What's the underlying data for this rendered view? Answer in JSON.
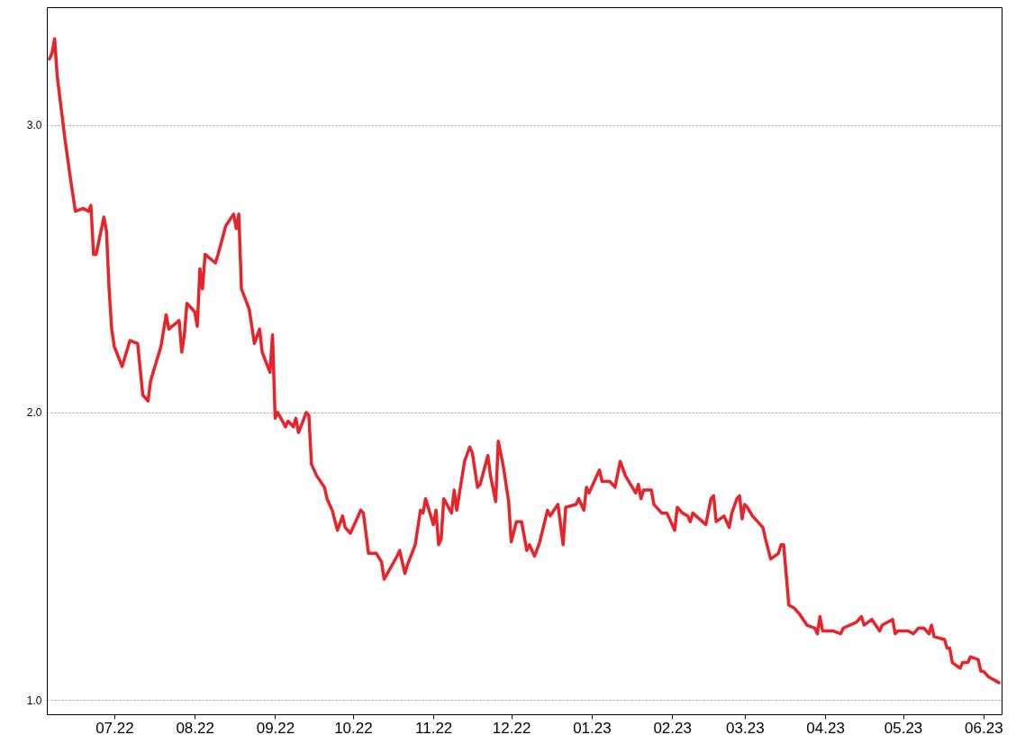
{
  "chart_data": {
    "type": "line",
    "grid": "y",
    "marker": "none",
    "line_style": "solid",
    "xlim": [
      "2022-06-05",
      "2023-06-08"
    ],
    "ylim": [
      0.95,
      3.41
    ],
    "xticks": [
      {
        "value": "2022-07-01",
        "label": "07.22"
      },
      {
        "value": "2022-08-01",
        "label": "08.22"
      },
      {
        "value": "2022-09-01",
        "label": "09.22"
      },
      {
        "value": "2022-10-01",
        "label": "10.22"
      },
      {
        "value": "2022-11-01",
        "label": "11.22"
      },
      {
        "value": "2022-12-01",
        "label": "12.22"
      },
      {
        "value": "2023-01-01",
        "label": "01.23"
      },
      {
        "value": "2023-02-01",
        "label": "02.23"
      },
      {
        "value": "2023-03-01",
        "label": "03.23"
      },
      {
        "value": "2023-04-01",
        "label": "04.23"
      },
      {
        "value": "2023-05-01",
        "label": "05.23"
      },
      {
        "value": "2023-06-01",
        "label": "06.23"
      }
    ],
    "yticks": [
      {
        "value": 1,
        "label": "1.0"
      },
      {
        "value": 2,
        "label": "2.0"
      },
      {
        "value": 3,
        "label": "3.0"
      }
    ],
    "x": [
      "2022-06-06",
      "2022-06-07",
      "2022-06-08",
      "2022-06-09",
      "2022-06-12",
      "2022-06-14",
      "2022-06-16",
      "2022-06-19",
      "2022-06-21",
      "2022-06-22",
      "2022-06-23",
      "2022-06-24",
      "2022-06-27",
      "2022-06-28",
      "2022-06-29",
      "2022-06-30",
      "2022-07-01",
      "2022-07-04",
      "2022-07-07",
      "2022-07-10",
      "2022-07-12",
      "2022-07-14",
      "2022-07-15",
      "2022-07-19",
      "2022-07-21",
      "2022-07-22",
      "2022-07-26",
      "2022-07-27",
      "2022-07-28",
      "2022-07-29",
      "2022-08-01",
      "2022-08-02",
      "2022-08-03",
      "2022-08-04",
      "2022-08-05",
      "2022-08-09",
      "2022-08-10",
      "2022-08-13",
      "2022-08-16",
      "2022-08-17",
      "2022-08-18",
      "2022-08-19",
      "2022-08-22",
      "2022-08-24",
      "2022-08-26",
      "2022-08-27",
      "2022-08-30",
      "2022-08-31",
      "2022-09-01",
      "2022-09-02",
      "2022-09-05",
      "2022-09-06",
      "2022-09-08",
      "2022-09-09",
      "2022-09-10",
      "2022-09-13",
      "2022-09-14",
      "2022-09-15",
      "2022-09-17",
      "2022-09-20",
      "2022-09-21",
      "2022-09-23",
      "2022-09-25",
      "2022-09-27",
      "2022-09-28",
      "2022-09-30",
      "2022-10-04",
      "2022-10-05",
      "2022-10-07",
      "2022-10-10",
      "2022-10-12",
      "2022-10-13",
      "2022-10-18",
      "2022-10-19",
      "2022-10-21",
      "2022-10-22",
      "2022-10-25",
      "2022-10-27",
      "2022-10-28",
      "2022-10-29",
      "2022-11-01",
      "2022-11-02",
      "2022-11-03",
      "2022-11-04",
      "2022-11-05",
      "2022-11-08",
      "2022-11-09",
      "2022-11-10",
      "2022-11-13",
      "2022-11-15",
      "2022-11-16",
      "2022-11-18",
      "2022-11-19",
      "2022-11-22",
      "2022-11-23",
      "2022-11-25",
      "2022-11-26",
      "2022-11-28",
      "2022-11-30",
      "2022-12-01",
      "2022-12-03",
      "2022-12-05",
      "2022-12-07",
      "2022-12-08",
      "2022-12-10",
      "2022-12-12",
      "2022-12-15",
      "2022-12-16",
      "2022-12-19",
      "2022-12-21",
      "2022-12-22",
      "2022-12-26",
      "2022-12-27",
      "2022-12-29",
      "2022-12-30",
      "2022-12-31",
      "2023-01-03",
      "2023-01-04",
      "2023-01-05",
      "2023-01-08",
      "2023-01-10",
      "2023-01-12",
      "2023-01-14",
      "2023-01-18",
      "2023-01-19",
      "2023-01-20",
      "2023-01-21",
      "2023-01-24",
      "2023-01-25",
      "2023-01-28",
      "2023-01-30",
      "2023-02-02",
      "2023-02-03",
      "2023-02-05",
      "2023-02-07",
      "2023-02-08",
      "2023-02-09",
      "2023-02-14",
      "2023-02-16",
      "2023-02-17",
      "2023-02-18",
      "2023-02-21",
      "2023-02-23",
      "2023-02-24",
      "2023-02-26",
      "2023-02-27",
      "2023-02-28",
      "2023-03-01",
      "2023-03-02",
      "2023-03-04",
      "2023-03-08",
      "2023-03-09",
      "2023-03-11",
      "2023-03-14",
      "2023-03-15",
      "2023-03-16",
      "2023-03-18",
      "2023-03-20",
      "2023-03-22",
      "2023-03-25",
      "2023-03-28",
      "2023-03-29",
      "2023-03-30",
      "2023-03-31",
      "2023-04-04",
      "2023-04-07",
      "2023-04-08",
      "2023-04-13",
      "2023-04-15",
      "2023-04-16",
      "2023-04-19",
      "2023-04-22",
      "2023-04-23",
      "2023-04-27",
      "2023-04-28",
      "2023-04-29",
      "2023-05-03",
      "2023-05-05",
      "2023-05-07",
      "2023-05-09",
      "2023-05-11",
      "2023-05-12",
      "2023-05-13",
      "2023-05-17",
      "2023-05-18",
      "2023-05-19",
      "2023-05-20",
      "2023-05-23",
      "2023-05-24",
      "2023-05-26",
      "2023-05-27",
      "2023-05-30",
      "2023-05-31",
      "2023-06-01",
      "2023-06-02",
      "2023-06-03",
      "2023-06-07"
    ],
    "series": [
      {
        "color": "#e8232a",
        "values": [
          3.23,
          3.25,
          3.3,
          3.17,
          2.95,
          2.82,
          2.7,
          2.71,
          2.7,
          2.72,
          2.55,
          2.55,
          2.68,
          2.63,
          2.43,
          2.29,
          2.23,
          2.16,
          2.25,
          2.24,
          2.06,
          2.04,
          2.11,
          2.23,
          2.34,
          2.29,
          2.32,
          2.21,
          2.27,
          2.38,
          2.35,
          2.3,
          2.5,
          2.43,
          2.55,
          2.52,
          2.55,
          2.65,
          2.69,
          2.64,
          2.69,
          2.43,
          2.36,
          2.24,
          2.29,
          2.21,
          2.14,
          2.27,
          1.98,
          2.0,
          1.95,
          1.97,
          1.95,
          1.98,
          1.93,
          2.0,
          1.99,
          1.82,
          1.78,
          1.74,
          1.7,
          1.66,
          1.59,
          1.64,
          1.6,
          1.58,
          1.66,
          1.65,
          1.51,
          1.51,
          1.48,
          1.42,
          1.5,
          1.52,
          1.44,
          1.47,
          1.54,
          1.66,
          1.65,
          1.7,
          1.61,
          1.66,
          1.54,
          1.56,
          1.7,
          1.65,
          1.73,
          1.66,
          1.83,
          1.88,
          1.86,
          1.74,
          1.75,
          1.85,
          1.78,
          1.69,
          1.9,
          1.81,
          1.69,
          1.55,
          1.62,
          1.62,
          1.52,
          1.54,
          1.5,
          1.55,
          1.66,
          1.64,
          1.68,
          1.54,
          1.67,
          1.68,
          1.7,
          1.66,
          1.74,
          1.72,
          1.78,
          1.8,
          1.76,
          1.76,
          1.74,
          1.83,
          1.78,
          1.72,
          1.75,
          1.7,
          1.73,
          1.73,
          1.68,
          1.65,
          1.65,
          1.59,
          1.67,
          1.65,
          1.64,
          1.62,
          1.65,
          1.61,
          1.7,
          1.71,
          1.62,
          1.64,
          1.6,
          1.65,
          1.7,
          1.71,
          1.63,
          1.68,
          1.67,
          1.64,
          1.6,
          1.56,
          1.49,
          1.51,
          1.54,
          1.54,
          1.33,
          1.32,
          1.3,
          1.26,
          1.25,
          1.23,
          1.29,
          1.24,
          1.24,
          1.23,
          1.25,
          1.27,
          1.29,
          1.26,
          1.28,
          1.24,
          1.26,
          1.28,
          1.23,
          1.24,
          1.24,
          1.23,
          1.25,
          1.25,
          1.23,
          1.26,
          1.22,
          1.21,
          1.18,
          1.18,
          1.13,
          1.11,
          1.13,
          1.13,
          1.15,
          1.14,
          1.1,
          1.1,
          1.09,
          1.08,
          1.06
        ]
      }
    ]
  }
}
